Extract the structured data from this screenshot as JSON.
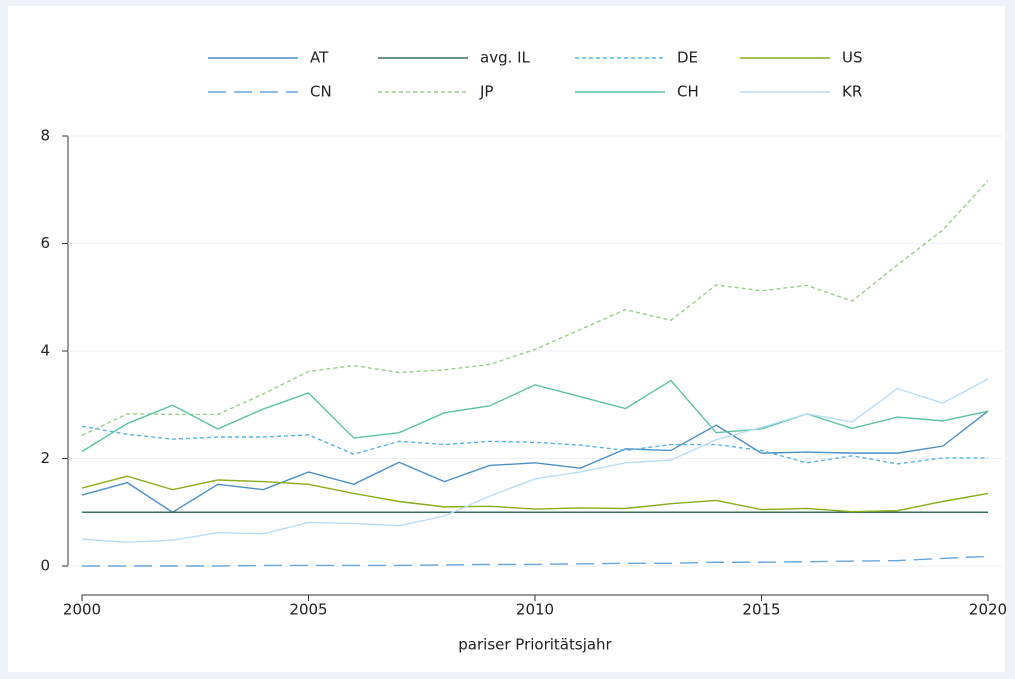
{
  "chart_data": {
    "type": "line",
    "xlabel": "pariser Prioritätsjahr",
    "x": [
      2000,
      2001,
      2002,
      2003,
      2004,
      2005,
      2006,
      2007,
      2008,
      2009,
      2010,
      2011,
      2012,
      2013,
      2014,
      2015,
      2016,
      2017,
      2018,
      2019,
      2020
    ],
    "xlim": [
      2000,
      2020
    ],
    "xticks": [
      2000,
      2005,
      2010,
      2015,
      2020
    ],
    "ylim": [
      0,
      8
    ],
    "yticks": [
      0,
      2,
      4,
      6,
      8
    ],
    "grid": true,
    "series": [
      {
        "name": "AT",
        "color": "#4e8fc4",
        "dash": "none",
        "values": [
          1.32,
          1.55,
          1.0,
          1.52,
          1.42,
          1.75,
          1.52,
          1.93,
          1.57,
          1.87,
          1.92,
          1.82,
          2.18,
          2.15,
          2.62,
          2.1,
          2.12,
          2.1,
          2.1,
          2.23,
          2.88
        ]
      },
      {
        "name": "avg. IL",
        "color": "#3a6e62",
        "dash": "none",
        "values": [
          1,
          1,
          1,
          1,
          1,
          1,
          1,
          1,
          1,
          1,
          1,
          1,
          1,
          1,
          1,
          1,
          1,
          1,
          1,
          1,
          1
        ]
      },
      {
        "name": "DE",
        "color": "#5ab5e0",
        "dash": "4 3",
        "values": [
          2.6,
          2.45,
          2.36,
          2.4,
          2.4,
          2.44,
          2.08,
          2.32,
          2.26,
          2.32,
          2.3,
          2.25,
          2.15,
          2.26,
          2.26,
          2.15,
          1.92,
          2.05,
          1.9,
          2.01,
          2.01
        ]
      },
      {
        "name": "US",
        "color": "#8aac1a",
        "dash": "none",
        "values": [
          1.45,
          1.67,
          1.42,
          1.6,
          1.57,
          1.52,
          1.35,
          1.2,
          1.1,
          1.11,
          1.06,
          1.08,
          1.07,
          1.16,
          1.22,
          1.05,
          1.07,
          1.01,
          1.03,
          1.2,
          1.35
        ]
      },
      {
        "name": "CN",
        "color": "#6aa6d8",
        "dash": "18 8",
        "values": [
          0,
          0,
          0,
          0,
          0.01,
          0.01,
          0.01,
          0.01,
          0.02,
          0.03,
          0.03,
          0.04,
          0.05,
          0.05,
          0.07,
          0.07,
          0.08,
          0.09,
          0.1,
          0.14,
          0.18
        ]
      },
      {
        "name": "JP",
        "color": "#9acd8a",
        "dash": "4 3",
        "values": [
          2.43,
          2.83,
          2.82,
          2.82,
          3.2,
          3.62,
          3.73,
          3.6,
          3.65,
          3.75,
          4.03,
          4.4,
          4.77,
          4.57,
          5.23,
          5.12,
          5.22,
          4.93,
          5.6,
          6.25,
          7.17
        ]
      },
      {
        "name": "CH",
        "color": "#5cc2a4",
        "dash": "none",
        "values": [
          2.13,
          2.65,
          2.99,
          2.55,
          2.92,
          3.22,
          2.38,
          2.48,
          2.85,
          2.98,
          3.37,
          3.15,
          2.93,
          3.45,
          2.48,
          2.55,
          2.83,
          2.56,
          2.77,
          2.7,
          2.88
        ]
      },
      {
        "name": "KR",
        "color": "#b8ddf5",
        "dash": "none",
        "values": [
          0.5,
          0.44,
          0.48,
          0.62,
          0.6,
          0.81,
          0.79,
          0.75,
          0.93,
          1.3,
          1.62,
          1.75,
          1.92,
          1.97,
          2.35,
          2.58,
          2.83,
          2.68,
          3.3,
          3.03,
          3.48
        ]
      }
    ]
  }
}
